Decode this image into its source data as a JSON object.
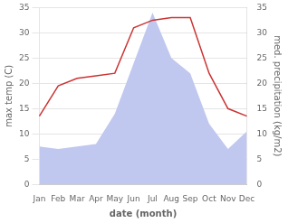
{
  "chart_data": {
    "type": "line",
    "categories": [
      "Jan",
      "Feb",
      "Mar",
      "Apr",
      "May",
      "Jun",
      "Jul",
      "Aug",
      "Sep",
      "Oct",
      "Nov",
      "Dec"
    ],
    "series": [
      {
        "type": "area",
        "color": "#c0c8f0",
        "axis": "y2",
        "values": [
          7.5,
          7.0,
          7.5,
          8.0,
          14.0,
          24.0,
          34.0,
          25.0,
          22.0,
          12.0,
          7.0,
          10.5
        ]
      },
      {
        "type": "line",
        "color": "#cc3333",
        "values": [
          13.5,
          19.5,
          21.0,
          21.5,
          22.0,
          31.0,
          32.5,
          33.0,
          33.0,
          22.0,
          15.0,
          13.5
        ]
      }
    ],
    "xlabel": "date (month)",
    "ylabel": "max temp (C)",
    "y2label": "med. precipitation (kg/m2)",
    "ylim": [
      0,
      35
    ],
    "yticks": [
      0,
      5,
      10,
      15,
      20,
      25,
      30,
      35
    ],
    "y2lim": [
      0,
      35
    ],
    "y2ticks": [
      0,
      5,
      10,
      15,
      20,
      25,
      30,
      35
    ],
    "grid": true
  }
}
